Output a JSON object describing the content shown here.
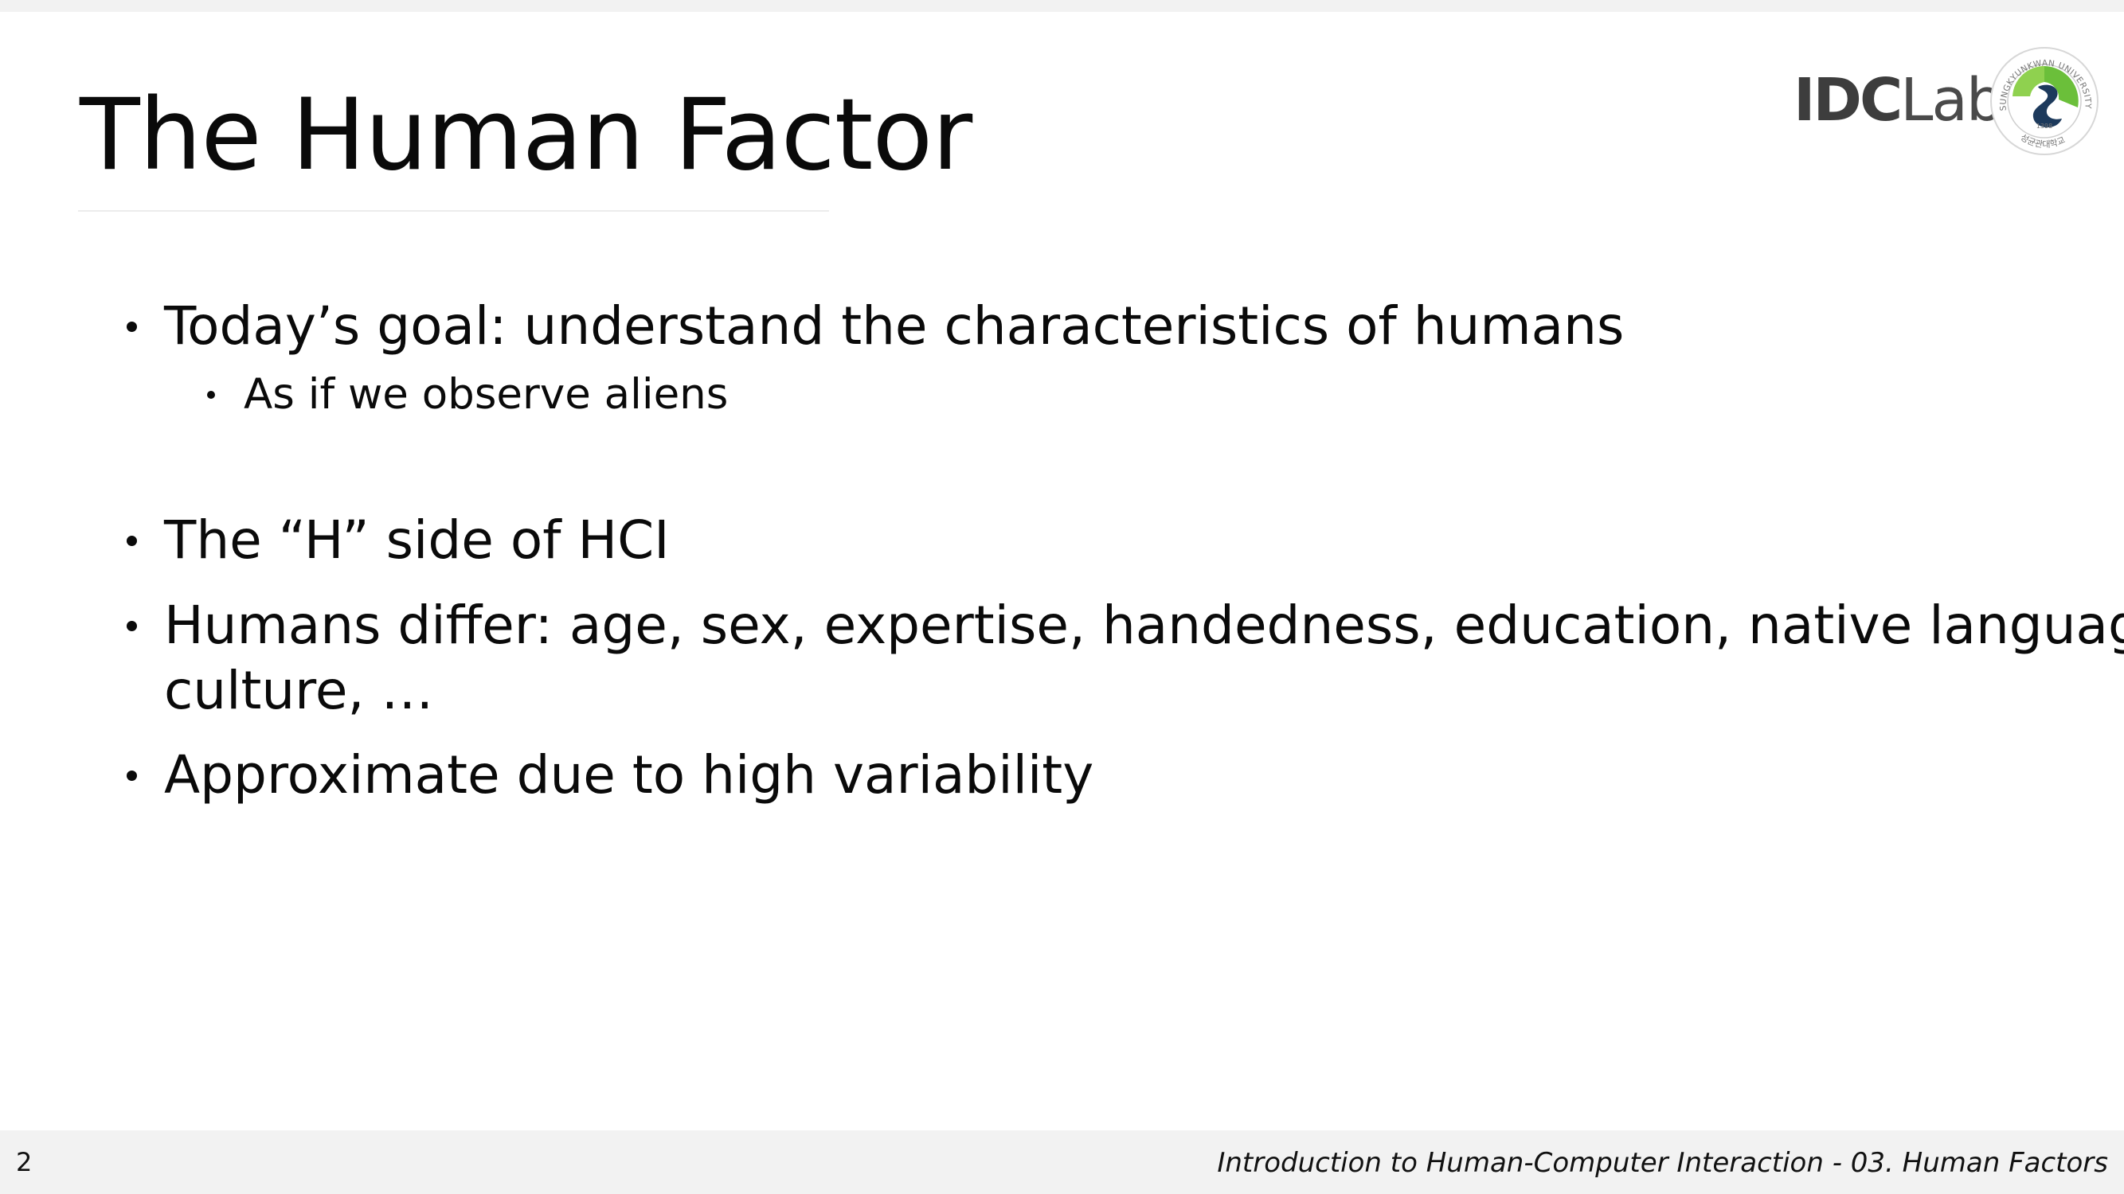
{
  "slide": {
    "title": "The Human Factor",
    "page_number": "2",
    "footer": "Introduction to Human-Computer Interaction - 03. Human Factors"
  },
  "logos": {
    "lab_name_bold": "IDC",
    "lab_name_light": "Lab",
    "university_seal": "sungkyunkwan-university-seal",
    "seal_ring_text": "SUNGKYUNKWAN UNIVERSITY",
    "seal_year": "1398",
    "seal_korean": "성균관대학교"
  },
  "bullets": [
    {
      "text": "Today’s goal: understand the characteristics of humans",
      "sub": "As if we observe aliens"
    },
    {
      "text": "The “H” side of HCI"
    },
    {
      "text": "Humans differ: age, sex, expertise, handedness, education, native language,",
      "text_cont": "culture, …"
    },
    {
      "text": "Approximate due to high variability"
    }
  ],
  "colors": {
    "background": "#f2f2f2",
    "slide": "#ffffff",
    "text": "#0a0a0a",
    "seal_green": "#6bbf3a",
    "seal_navy": "#1d3a5c"
  }
}
